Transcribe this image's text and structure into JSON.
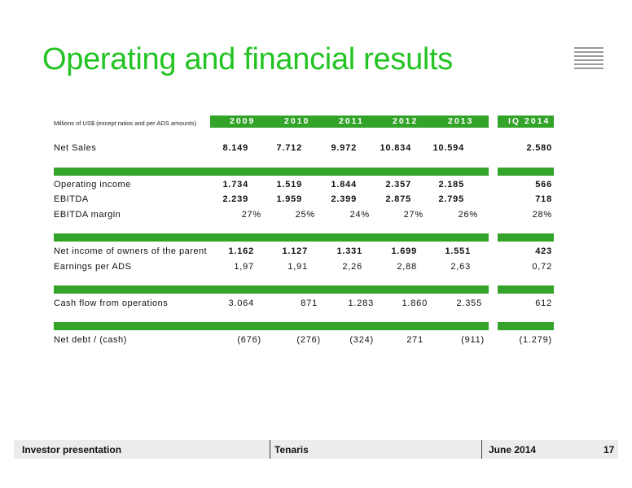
{
  "title": "Operating and financial results",
  "units_note": "Millions of US$ (except ratios and per ADS amounts)",
  "columns": [
    "2009",
    "2010",
    "2011",
    "2012",
    "2013",
    "IQ 2014"
  ],
  "rows": [
    {
      "label": "Net Sales",
      "values": [
        "8.149",
        "7.712",
        "9.972",
        "10.834",
        "10.594",
        "2.580"
      ]
    },
    {
      "label": "Operating income",
      "values": [
        "1.734",
        "1.519",
        "1.844",
        "2.357",
        "2.185",
        "566"
      ]
    },
    {
      "label": "EBITDA",
      "values": [
        "2.239",
        "1.959",
        "2.399",
        "2.875",
        "2.795",
        "718"
      ]
    },
    {
      "label": "EBITDA margin",
      "values": [
        "27%",
        "25%",
        "24%",
        "27%",
        "26%",
        "28%"
      ]
    },
    {
      "label": "Net income of owners of the parent",
      "values": [
        "1.162",
        "1.127",
        "1.331",
        "1.699",
        "1.551",
        "423"
      ]
    },
    {
      "label": "Earnings per ADS",
      "values": [
        "1,97",
        "1,91",
        "2,26",
        "2,88",
        "2,63",
        "0,72"
      ]
    },
    {
      "label": "Cash flow from operations",
      "values": [
        "3.064",
        "871",
        "1.283",
        "1.860",
        "2.355",
        "612"
      ]
    },
    {
      "label": "Net debt / (cash)",
      "values": [
        "(676)",
        "(276)",
        "(324)",
        "271",
        "(911)",
        "(1.279)"
      ]
    }
  ],
  "footer": {
    "left": "Investor presentation",
    "center": "Tenaris",
    "date": "June 2014",
    "page": "17"
  },
  "colors": {
    "title": "#22c322",
    "bar": "#33a32a",
    "footer_bg": "#ececec"
  }
}
